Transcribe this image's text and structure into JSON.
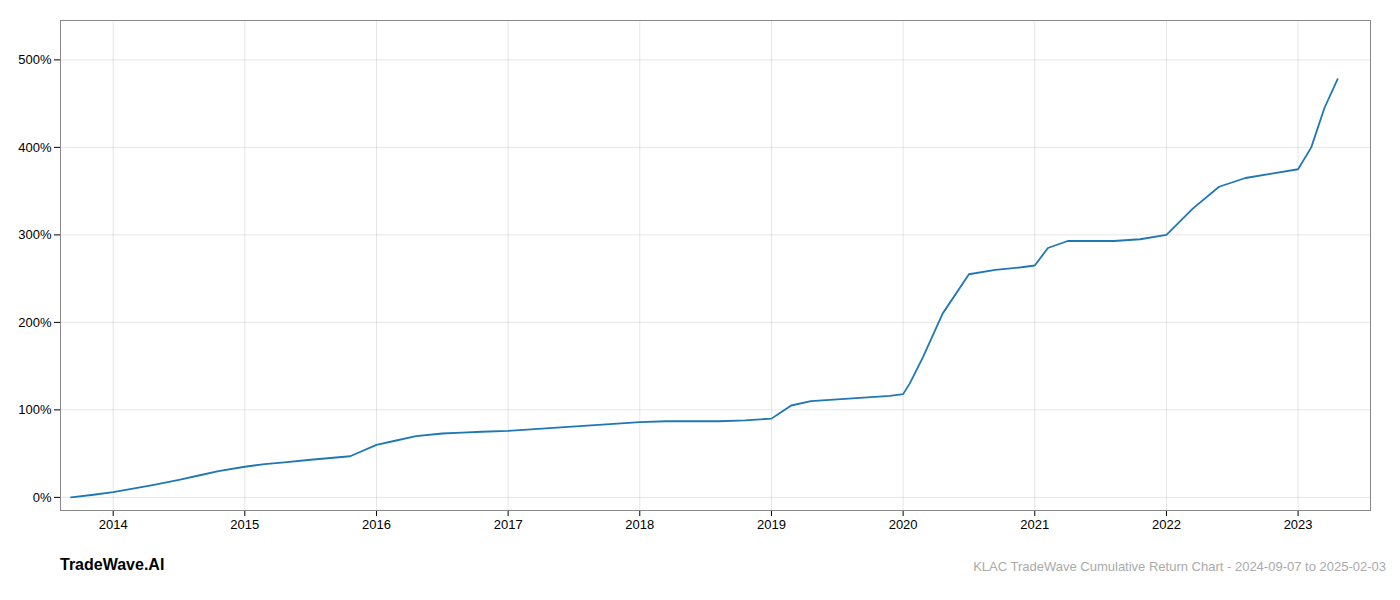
{
  "chart_data": {
    "type": "line",
    "annotations": [
      "TradeWave.AI",
      "KLAC TradeWave Cumulative Return Chart - 2024-09-07 to 2025-02-03"
    ],
    "color": "#1f77b4",
    "grid": true,
    "xlim": [
      2013.6,
      2023.55
    ],
    "xticks": [
      2014,
      2015,
      2016,
      2017,
      2018,
      2019,
      2020,
      2021,
      2022,
      2023
    ],
    "ylim": [
      -0.15,
      5.45
    ],
    "yticks": [
      {
        "value": 0.0,
        "label": "0%"
      },
      {
        "value": 1.0,
        "label": "100%"
      },
      {
        "value": 2.0,
        "label": "200%"
      },
      {
        "value": 3.0,
        "label": "300%"
      },
      {
        "value": 4.0,
        "label": "400%"
      },
      {
        "value": 5.0,
        "label": "500%"
      }
    ],
    "x": [
      2013.68,
      2013.85,
      2014.0,
      2014.15,
      2014.3,
      2014.5,
      2014.65,
      2014.8,
      2015.0,
      2015.15,
      2015.3,
      2015.5,
      2015.65,
      2015.8,
      2016.0,
      2016.15,
      2016.3,
      2016.5,
      2016.65,
      2016.8,
      2017.0,
      2017.2,
      2017.4,
      2017.6,
      2017.8,
      2018.0,
      2018.2,
      2018.4,
      2018.6,
      2018.8,
      2019.0,
      2019.05,
      2019.15,
      2019.3,
      2019.5,
      2019.7,
      2019.9,
      2020.0,
      2020.05,
      2020.15,
      2020.3,
      2020.5,
      2020.7,
      2020.9,
      2021.0,
      2021.1,
      2021.25,
      2021.4,
      2021.6,
      2021.8,
      2022.0,
      2022.2,
      2022.4,
      2022.6,
      2022.8,
      2023.0,
      2023.1,
      2023.2,
      2023.3
    ],
    "values": [
      0.0,
      0.03,
      0.06,
      0.1,
      0.14,
      0.2,
      0.25,
      0.3,
      0.35,
      0.38,
      0.4,
      0.43,
      0.45,
      0.47,
      0.6,
      0.65,
      0.7,
      0.73,
      0.74,
      0.75,
      0.76,
      0.78,
      0.8,
      0.82,
      0.84,
      0.86,
      0.87,
      0.87,
      0.87,
      0.88,
      0.9,
      0.95,
      1.05,
      1.1,
      1.12,
      1.14,
      1.16,
      1.18,
      1.3,
      1.6,
      2.1,
      2.55,
      2.6,
      2.63,
      2.65,
      2.85,
      2.93,
      2.93,
      2.93,
      2.95,
      3.0,
      3.3,
      3.55,
      3.65,
      3.7,
      3.75,
      4.0,
      4.45,
      4.78
    ]
  }
}
